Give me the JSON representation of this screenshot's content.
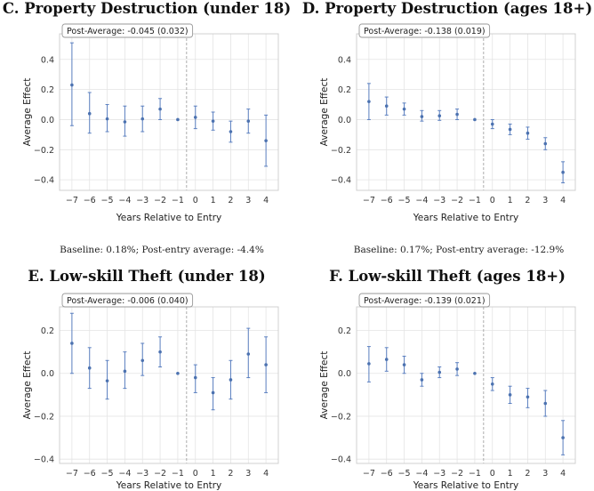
{
  "chart_data": [
    {
      "type": "scatter",
      "title": "C. Property Destruction (under 18)",
      "annotation": "Post-Average: -0.045 (0.032)",
      "xlabel": "Years Relative to Entry",
      "ylabel": "Average Effect",
      "x": [
        -7,
        -6,
        -5,
        -4,
        -3,
        -2,
        -1,
        0,
        1,
        2,
        3,
        4
      ],
      "y": [
        0.23,
        0.04,
        0.005,
        -0.015,
        0.005,
        0.07,
        0.0,
        0.015,
        -0.01,
        -0.08,
        -0.01,
        -0.14
      ],
      "ci_low": [
        -0.04,
        -0.09,
        -0.08,
        -0.11,
        -0.08,
        0.0,
        0.0,
        -0.06,
        -0.07,
        -0.15,
        -0.09,
        -0.31
      ],
      "ci_high": [
        0.51,
        0.18,
        0.1,
        0.09,
        0.09,
        0.14,
        0.0,
        0.09,
        0.05,
        -0.01,
        0.07,
        0.03
      ],
      "ylim": [
        -0.47,
        0.57
      ],
      "yticks": [
        -0.4,
        -0.2,
        0.0,
        0.2,
        0.4
      ],
      "ytick_labels": [
        "−0.4",
        "−0.2",
        "0.0",
        "0.2",
        "0.4"
      ],
      "xticks": [
        -7,
        -6,
        -5,
        -4,
        -3,
        -2,
        -1,
        0,
        1,
        2,
        3,
        4
      ],
      "xtick_labels": [
        "−7",
        "−6",
        "−5",
        "−4",
        "−3",
        "−2",
        "−1",
        "0",
        "1",
        "2",
        "3",
        "4"
      ],
      "xlim": [
        -7.7,
        4.7
      ],
      "caption": "Baseline: 0.18%; Post-entry average: -4.4%"
    },
    {
      "type": "scatter",
      "title": "D. Property Destruction (ages 18+)",
      "annotation": "Post-Average: -0.138 (0.019)",
      "xlabel": "Years Relative to Entry",
      "ylabel": "Average Effect",
      "x": [
        -7,
        -6,
        -5,
        -4,
        -3,
        -2,
        -1,
        0,
        1,
        2,
        3,
        4
      ],
      "y": [
        0.12,
        0.09,
        0.07,
        0.02,
        0.025,
        0.035,
        0.0,
        -0.03,
        -0.065,
        -0.09,
        -0.16,
        -0.35
      ],
      "ci_low": [
        0.0,
        0.03,
        0.03,
        -0.01,
        -0.005,
        0.0,
        0.0,
        -0.06,
        -0.1,
        -0.13,
        -0.2,
        -0.42
      ],
      "ci_high": [
        0.24,
        0.15,
        0.11,
        0.06,
        0.06,
        0.07,
        0.0,
        0.0,
        -0.03,
        -0.05,
        -0.12,
        -0.28
      ],
      "ylim": [
        -0.47,
        0.57
      ],
      "yticks": [
        -0.4,
        -0.2,
        0.0,
        0.2,
        0.4
      ],
      "ytick_labels": [
        "−0.4",
        "−0.2",
        "0.0",
        "0.2",
        "0.4"
      ],
      "xticks": [
        -7,
        -6,
        -5,
        -4,
        -3,
        -2,
        -1,
        0,
        1,
        2,
        3,
        4
      ],
      "xtick_labels": [
        "−7",
        "−6",
        "−5",
        "−4",
        "−3",
        "−2",
        "−1",
        "0",
        "1",
        "2",
        "3",
        "4"
      ],
      "xlim": [
        -7.7,
        4.7
      ],
      "caption": "Baseline: 0.17%; Post-entry average: -12.9%"
    },
    {
      "type": "scatter",
      "title": "E. Low-skill Theft (under 18)",
      "annotation": "Post-Average: -0.006 (0.040)",
      "xlabel": "Years Relative to Entry",
      "ylabel": "Average Effect",
      "x": [
        -7,
        -6,
        -5,
        -4,
        -3,
        -2,
        -1,
        0,
        1,
        2,
        3,
        4
      ],
      "y": [
        0.14,
        0.025,
        -0.035,
        0.01,
        0.06,
        0.1,
        0.0,
        -0.02,
        -0.09,
        -0.03,
        0.09,
        0.04
      ],
      "ci_low": [
        0.0,
        -0.07,
        -0.12,
        -0.07,
        -0.01,
        0.03,
        0.0,
        -0.09,
        -0.17,
        -0.12,
        -0.02,
        -0.09
      ],
      "ci_high": [
        0.28,
        0.12,
        0.06,
        0.1,
        0.14,
        0.17,
        0.0,
        0.04,
        -0.02,
        0.06,
        0.21,
        0.17
      ],
      "ylim": [
        -0.42,
        0.31
      ],
      "yticks": [
        -0.4,
        -0.2,
        0.0,
        0.2
      ],
      "ytick_labels": [
        "−0.4",
        "−0.2",
        "0.0",
        "0.2"
      ],
      "xticks": [
        -7,
        -6,
        -5,
        -4,
        -3,
        -2,
        -1,
        0,
        1,
        2,
        3,
        4
      ],
      "xtick_labels": [
        "−7",
        "−6",
        "−5",
        "−4",
        "−3",
        "−2",
        "−1",
        "0",
        "1",
        "2",
        "3",
        "4"
      ],
      "xlim": [
        -7.7,
        4.7
      ],
      "caption": ""
    },
    {
      "type": "scatter",
      "title": "F. Low-skill Theft (ages 18+)",
      "annotation": "Post-Average: -0.139 (0.021)",
      "xlabel": "Years Relative to Entry",
      "ylabel": "Average Effect",
      "x": [
        -7,
        -6,
        -5,
        -4,
        -3,
        -2,
        -1,
        0,
        1,
        2,
        3,
        4
      ],
      "y": [
        0.045,
        0.065,
        0.04,
        -0.03,
        0.005,
        0.02,
        0.0,
        -0.05,
        -0.1,
        -0.11,
        -0.14,
        -0.3
      ],
      "ci_low": [
        -0.04,
        0.01,
        0.0,
        -0.06,
        -0.02,
        -0.01,
        0.0,
        -0.08,
        -0.14,
        -0.16,
        -0.2,
        -0.38
      ],
      "ci_high": [
        0.125,
        0.12,
        0.08,
        0.0,
        0.03,
        0.05,
        0.0,
        -0.02,
        -0.06,
        -0.07,
        -0.08,
        -0.22
      ],
      "ylim": [
        -0.42,
        0.31
      ],
      "yticks": [
        -0.4,
        -0.2,
        0.0,
        0.2
      ],
      "ytick_labels": [
        "−0.4",
        "−0.2",
        "0.0",
        "0.2"
      ],
      "xticks": [
        -7,
        -6,
        -5,
        -4,
        -3,
        -2,
        -1,
        0,
        1,
        2,
        3,
        4
      ],
      "xtick_labels": [
        "−7",
        "−6",
        "−5",
        "−4",
        "−3",
        "−2",
        "−1",
        "0",
        "1",
        "2",
        "3",
        "4"
      ],
      "xlim": [
        -7.7,
        4.7
      ],
      "caption": ""
    }
  ],
  "colors": {
    "marker": "#4c72b0",
    "errorbar": "#5a7fc0",
    "grid": "#e4e4e4",
    "spine": "#cccccc",
    "refline": "#999999"
  }
}
